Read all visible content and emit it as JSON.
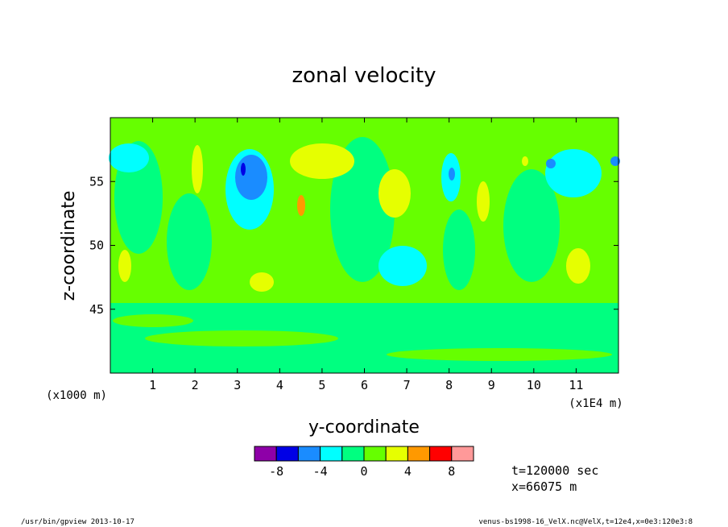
{
  "chart_data": {
    "type": "heatmap",
    "title": "zonal velocity",
    "xlabel": "y-coordinate",
    "ylabel": "z-coordinate",
    "x_unit": "(x1E4 m)",
    "y_unit": "(x1000 m)",
    "xlim": [
      0.0,
      12.0
    ],
    "ylim": [
      40.0,
      60.0
    ],
    "x_ticks": [
      1,
      2,
      3,
      4,
      5,
      6,
      7,
      8,
      9,
      10,
      11
    ],
    "y_ticks": [
      45,
      50,
      55
    ],
    "grid": false,
    "colorbar": {
      "levels": [
        -10,
        -8,
        -6,
        -4,
        -2,
        0,
        2,
        4,
        6,
        8,
        10
      ],
      "colors": [
        "#8e00a8",
        "#0000e6",
        "#1a8cff",
        "#00ffff",
        "#00ff80",
        "#66ff00",
        "#e6ff00",
        "#ff9900",
        "#ff0000",
        "#ff9999"
      ],
      "tick_labels": [
        "-8",
        "-4",
        "0",
        "4",
        "8"
      ]
    },
    "features": [
      {
        "y": 1.0,
        "z": 48.5,
        "u": 3
      },
      {
        "y": 2.0,
        "z": 55.0,
        "u": 3
      },
      {
        "y": 3.0,
        "z": 55.5,
        "u": -5
      },
      {
        "y": 3.2,
        "z": 56.0,
        "u": -8
      },
      {
        "y": 3.5,
        "z": 47.0,
        "u": 3
      },
      {
        "y": 4.5,
        "z": 56.5,
        "u": 3
      },
      {
        "y": 4.6,
        "z": 53.5,
        "u": 5
      },
      {
        "y": 7.0,
        "z": 53.0,
        "u": 3
      },
      {
        "y": 6.5,
        "z": 48.0,
        "u": -3
      },
      {
        "y": 8.0,
        "z": 56.0,
        "u": -5
      },
      {
        "y": 10.5,
        "z": 56.5,
        "u": -5
      },
      {
        "y": 11.0,
        "z": 48.5,
        "u": 3
      },
      {
        "y": 0.3,
        "z": 57.0,
        "u": -3
      }
    ]
  },
  "annotations": {
    "time": "t=120000 sec",
    "position": "x=66075 m",
    "footer_left": "/usr/bin/gpview  2013-10-17",
    "footer_right": "venus-bs1998-16_VelX.nc@VelX,t=12e4,x=0e3:120e3:8"
  }
}
